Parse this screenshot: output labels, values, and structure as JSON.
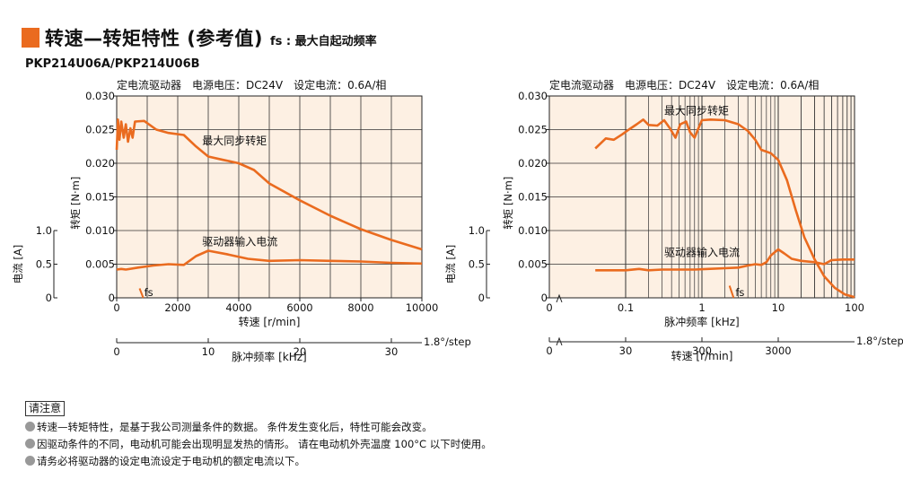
{
  "header": {
    "title": "转速—转矩特性 (参考值)",
    "fs_note": "fs : 最大自起动频率",
    "model": "PKP214U06A/PKP214U06B",
    "accent_color": "#ea6b1f"
  },
  "chart_data": [
    {
      "type": "line",
      "conditions": "定电流驱动器　电源电压：DC24V　设定电流：0.6A/相",
      "xlabel": "转速 [r/min]",
      "x_ticks": [
        "0",
        "2000",
        "4000",
        "6000",
        "8000",
        "10000"
      ],
      "xlim": [
        0,
        10000
      ],
      "ylabel": "转矩 [N·m]",
      "y_ticks": [
        "0",
        "0.005",
        "0.010",
        "0.015",
        "0.020",
        "0.025",
        "0.030"
      ],
      "ylim": [
        0,
        0.03
      ],
      "y2label": "电流 [A]",
      "y2_ticks": [
        "0",
        "0.5",
        "1.0"
      ],
      "y2lim": [
        0,
        1.0
      ],
      "x2label": "脉冲频率 [kHz]",
      "x2_ticks": [
        "0",
        "10",
        "20",
        "30"
      ],
      "step_label": "1.8°/step",
      "grid": true,
      "series": [
        {
          "name": "最大同步转矩",
          "color": "#ea6b1f",
          "points": [
            [
              0,
              0.022
            ],
            [
              40,
              0.0265
            ],
            [
              90,
              0.0235
            ],
            [
              150,
              0.0262
            ],
            [
              230,
              0.0238
            ],
            [
              300,
              0.0258
            ],
            [
              370,
              0.0232
            ],
            [
              450,
              0.0252
            ],
            [
              520,
              0.0238
            ],
            [
              600,
              0.0262
            ],
            [
              900,
              0.0263
            ],
            [
              1300,
              0.025
            ],
            [
              1700,
              0.0245
            ],
            [
              2200,
              0.0242
            ],
            [
              2600,
              0.0225
            ],
            [
              3000,
              0.021
            ],
            [
              3500,
              0.0205
            ],
            [
              4000,
              0.02
            ],
            [
              4500,
              0.019
            ],
            [
              5000,
              0.017
            ],
            [
              6000,
              0.0145
            ],
            [
              7000,
              0.0122
            ],
            [
              8000,
              0.0102
            ],
            [
              9000,
              0.0086
            ],
            [
              10000,
              0.0072
            ]
          ]
        },
        {
          "name": "驱动器输入电流",
          "color": "#ea6b1f",
          "points": [
            [
              0,
              0.0042
            ],
            [
              150,
              0.0043
            ],
            [
              300,
              0.0042
            ],
            [
              700,
              0.0045
            ],
            [
              1200,
              0.0048
            ],
            [
              1700,
              0.005
            ],
            [
              2200,
              0.0049
            ],
            [
              2600,
              0.0062
            ],
            [
              3000,
              0.007
            ],
            [
              3600,
              0.0065
            ],
            [
              4300,
              0.0058
            ],
            [
              5000,
              0.0055
            ],
            [
              6000,
              0.0056
            ],
            [
              7000,
              0.0055
            ],
            [
              8000,
              0.0054
            ],
            [
              9000,
              0.0052
            ],
            [
              10000,
              0.0051
            ]
          ]
        },
        {
          "name": "fs",
          "color": "#ea6b1f",
          "points": [
            [
              750,
              0.0014
            ],
            [
              870,
              0
            ]
          ]
        }
      ]
    },
    {
      "type": "line",
      "conditions": "定电流驱动器　电源电压：DC24V　设定电流：0.6A/相",
      "xlabel": "脉冲频率 [kHz]",
      "x_scale": "log",
      "x_ticks": [
        "0",
        "0.1",
        "1",
        "10",
        "100"
      ],
      "xlim": [
        0.01,
        100
      ],
      "ylabel": "转矩 [N·m]",
      "y_ticks": [
        "0",
        "0.005",
        "0.010",
        "0.015",
        "0.020",
        "0.025",
        "0.030"
      ],
      "ylim": [
        0,
        0.03
      ],
      "y2label": "电流 [A]",
      "y2_ticks": [
        "0",
        "0.5",
        "1.0"
      ],
      "y2lim": [
        0,
        1.0
      ],
      "x2label": "转速 [r/min]",
      "x2_ticks": [
        "0",
        "30",
        "300",
        "3000"
      ],
      "step_label": "1.8°/step",
      "grid": true,
      "series": [
        {
          "name": "最大同步转矩",
          "color": "#ea6b1f",
          "points": [
            [
              0.04,
              0.0222
            ],
            [
              0.055,
              0.0237
            ],
            [
              0.07,
              0.0235
            ],
            [
              0.09,
              0.0243
            ],
            [
              0.11,
              0.025
            ],
            [
              0.14,
              0.0258
            ],
            [
              0.17,
              0.0265
            ],
            [
              0.2,
              0.0257
            ],
            [
              0.26,
              0.0256
            ],
            [
              0.32,
              0.0264
            ],
            [
              0.38,
              0.0252
            ],
            [
              0.45,
              0.0238
            ],
            [
              0.52,
              0.0258
            ],
            [
              0.62,
              0.0262
            ],
            [
              0.7,
              0.0246
            ],
            [
              0.8,
              0.0238
            ],
            [
              0.9,
              0.0252
            ],
            [
              1.0,
              0.0264
            ],
            [
              1.3,
              0.0265
            ],
            [
              2,
              0.0264
            ],
            [
              3,
              0.0258
            ],
            [
              4,
              0.0248
            ],
            [
              5,
              0.0235
            ],
            [
              6,
              0.022
            ],
            [
              8,
              0.0215
            ],
            [
              10,
              0.0205
            ],
            [
              13,
              0.0175
            ],
            [
              17,
              0.013
            ],
            [
              22,
              0.009
            ],
            [
              30,
              0.0057
            ],
            [
              40,
              0.0032
            ],
            [
              55,
              0.0015
            ],
            [
              75,
              0.0005
            ],
            [
              100,
              0.0001
            ]
          ]
        },
        {
          "name": "驱动器输入电流",
          "color": "#ea6b1f",
          "points": [
            [
              0.04,
              0.0041
            ],
            [
              0.1,
              0.0041
            ],
            [
              0.15,
              0.0043
            ],
            [
              0.2,
              0.0041
            ],
            [
              0.3,
              0.0042
            ],
            [
              0.5,
              0.0042
            ],
            [
              0.8,
              0.0042
            ],
            [
              1.2,
              0.0043
            ],
            [
              2,
              0.0044
            ],
            [
              3,
              0.0045
            ],
            [
              4,
              0.0048
            ],
            [
              5,
              0.005
            ],
            [
              6,
              0.0049
            ],
            [
              7,
              0.0053
            ],
            [
              8,
              0.0063
            ],
            [
              10,
              0.0072
            ],
            [
              12,
              0.0066
            ],
            [
              15,
              0.0058
            ],
            [
              20,
              0.0055
            ],
            [
              30,
              0.0053
            ],
            [
              40,
              0.005
            ],
            [
              50,
              0.0056
            ],
            [
              70,
              0.0057
            ],
            [
              100,
              0.0057
            ]
          ]
        },
        {
          "name": "fs",
          "color": "#ea6b1f",
          "points": [
            [
              2.3,
              0.0018
            ],
            [
              2.6,
              0
            ]
          ]
        }
      ]
    }
  ],
  "charts": [
    {
      "conditions": "定电流驱动器　电源电压：DC24V　设定电流：0.6A/相",
      "torque_label": "最大同步转矩",
      "current_label": "驱动器输入电流",
      "fs_label": "fs",
      "xlabel": "转速 [r/min]",
      "x2label": "脉冲频率 [kHz]",
      "ylabel": "转矩 [N·m]",
      "y2label": "电流 [A]",
      "step_label": "1.8°/step",
      "x_ticks": [
        "0",
        "2000",
        "4000",
        "6000",
        "8000",
        "10000"
      ],
      "y_ticks": [
        "0",
        "0.005",
        "0.010",
        "0.015",
        "0.020",
        "0.025",
        "0.030"
      ],
      "y2_ticks": [
        "0",
        "0.5",
        "1.0"
      ],
      "x2_ticks": [
        "0",
        "10",
        "20",
        "30"
      ]
    },
    {
      "conditions": "定电流驱动器　电源电压：DC24V　设定电流：0.6A/相",
      "torque_label": "最大同步转矩",
      "current_label": "驱动器输入电流",
      "fs_label": "fs",
      "xlabel": "脉冲频率 [kHz]",
      "x2label": "转速 [r/min]",
      "ylabel": "转矩 [N·m]",
      "y2label": "电流 [A]",
      "step_label": "1.8°/step",
      "x_ticks": [
        "0",
        "0.1",
        "1",
        "10",
        "100"
      ],
      "y_ticks": [
        "0",
        "0.005",
        "0.010",
        "0.015",
        "0.020",
        "0.025",
        "0.030"
      ],
      "y2_ticks": [
        "0",
        "0.5",
        "1.0"
      ],
      "x2_ticks": [
        "0",
        "30",
        "300",
        "3000"
      ]
    }
  ],
  "notes": {
    "title": "请注意",
    "lines": [
      "转速—转矩特性，是基于我公司测量条件的数据。 条件发生变化后，特性可能会改变。",
      "因驱动条件的不同，电动机可能会出现明显发热的情形。 请在电动机外壳温度 100°C 以下时使用。",
      "请务必将驱动器的设定电流设定于电动机的额定电流以下。"
    ],
    "bullet_color": "#999999"
  },
  "colors": {
    "plot_bg": "#fdf0e3",
    "grid": "#333333",
    "curve": "#ea6b1f"
  }
}
